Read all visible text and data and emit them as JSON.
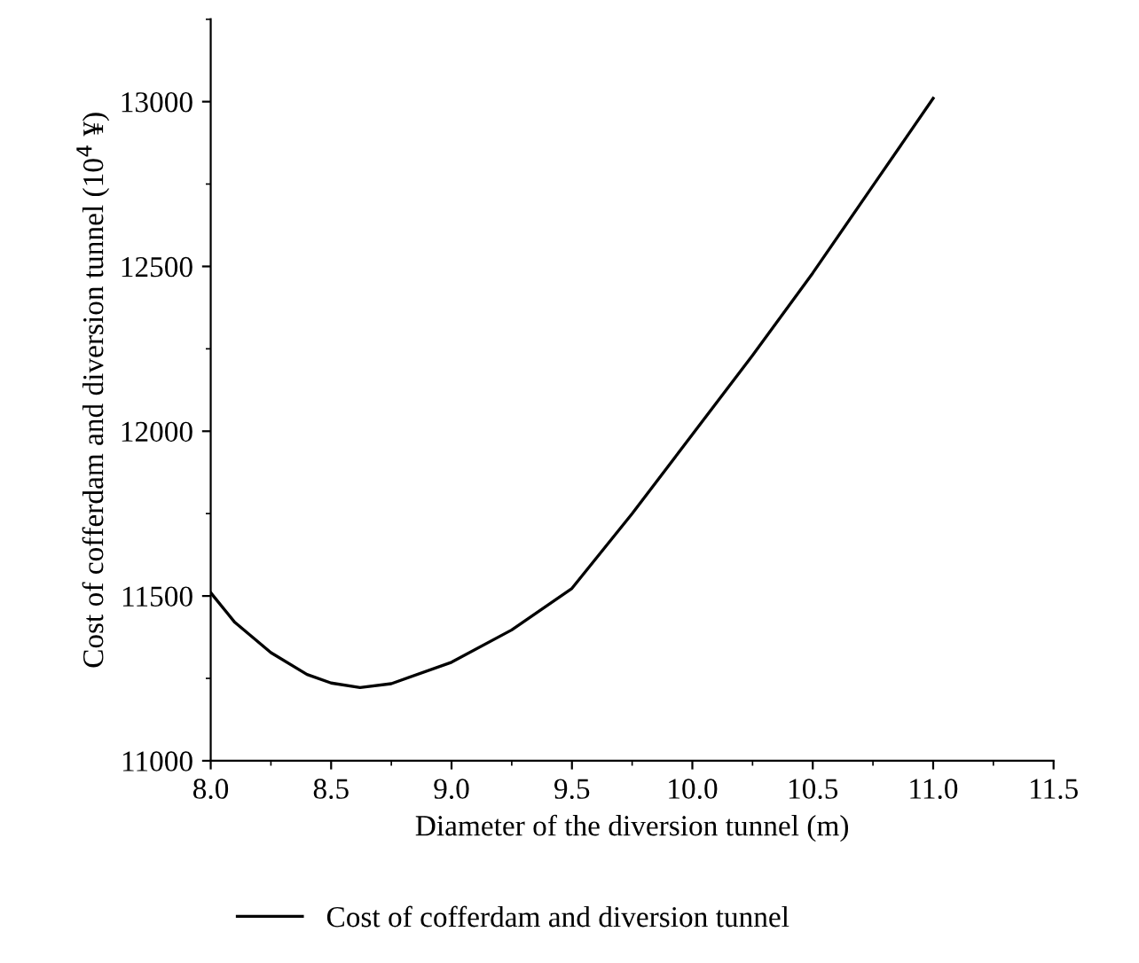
{
  "chart_data": {
    "type": "line",
    "xlabel": "Diameter of the diversion tunnel (m)",
    "ylabel": "Cost of cofferdam and diversion tunnel (10$^{4}$ ¥)",
    "x": [
      8.0,
      8.1,
      8.25,
      8.4,
      8.5,
      8.62,
      8.75,
      9.0,
      9.25,
      9.5,
      9.75,
      10.0,
      10.25,
      10.5,
      10.75,
      11.0
    ],
    "series": [
      {
        "name": "Cost of cofferdam and diversion tunnel",
        "color": "#000000",
        "values": [
          11510,
          11420,
          11328,
          11262,
          11236,
          11222,
          11234,
          11299,
          11397,
          11523,
          11750,
          11990,
          12230,
          12480,
          12745,
          13010
        ]
      }
    ],
    "xlim": [
      8.0,
      11.5
    ],
    "xticks": [
      {
        "value": 8.0,
        "label": "8.0"
      },
      {
        "value": 8.5,
        "label": "8.5"
      },
      {
        "value": 9.0,
        "label": "9.0"
      },
      {
        "value": 9.5,
        "label": "9.5"
      },
      {
        "value": 10.0,
        "label": "10.0"
      },
      {
        "value": 10.5,
        "label": "10.5"
      },
      {
        "value": 11.0,
        "label": "11.0"
      },
      {
        "value": 11.5,
        "label": "11.5"
      }
    ],
    "ylim": [
      11000,
      13250
    ],
    "yticks": [
      11000,
      11500,
      12000,
      12500,
      13000
    ],
    "grid": false,
    "legend": "bottom",
    "marker": "none",
    "line_style": "solid"
  }
}
